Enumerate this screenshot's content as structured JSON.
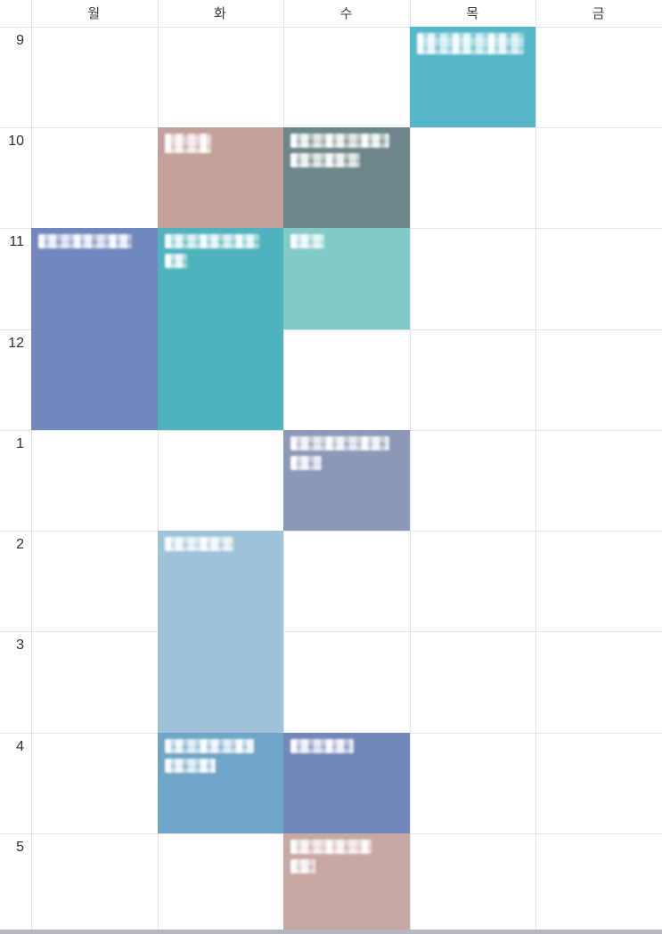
{
  "timetable": {
    "days": [
      {
        "label": "월"
      },
      {
        "label": "화"
      },
      {
        "label": "수"
      },
      {
        "label": "목"
      },
      {
        "label": "금"
      }
    ],
    "hours": [
      {
        "label": "9"
      },
      {
        "label": "10"
      },
      {
        "label": "11"
      },
      {
        "label": "12"
      },
      {
        "label": "1"
      },
      {
        "label": "2"
      },
      {
        "label": "3"
      },
      {
        "label": "4"
      },
      {
        "label": "5"
      }
    ],
    "events": [
      {
        "day": "목",
        "day_index": 3,
        "start": "9",
        "row": 0,
        "duration": 1,
        "color": "#55b7c7",
        "redacted_title": true,
        "lines": [
          [
            0.96,
            24
          ]
        ]
      },
      {
        "day": "화",
        "day_index": 1,
        "start": "10",
        "row": 1,
        "duration": 1,
        "color": "#c4a09a",
        "redacted_title": true,
        "lines": [
          [
            0.42,
            22
          ]
        ]
      },
      {
        "day": "수",
        "day_index": 2,
        "start": "10",
        "row": 1,
        "duration": 1,
        "color": "#6d8689",
        "redacted_title": true,
        "lines": [
          [
            0.88,
            16
          ],
          [
            0.62,
            16
          ]
        ]
      },
      {
        "day": "월",
        "day_index": 0,
        "start": "11",
        "row": 2,
        "duration": 2,
        "color": "#7187bd",
        "redacted_title": true,
        "lines": [
          [
            0.84,
            16
          ]
        ]
      },
      {
        "day": "화",
        "day_index": 1,
        "start": "11",
        "row": 2,
        "duration": 2,
        "color": "#4fb3bd",
        "redacted_title": true,
        "lines": [
          [
            0.85,
            16
          ],
          [
            0.2,
            16
          ]
        ]
      },
      {
        "day": "수",
        "day_index": 2,
        "start": "11",
        "row": 2,
        "duration": 1,
        "color": "#81cac7",
        "redacted_title": true,
        "lines": [
          [
            0.3,
            16
          ]
        ]
      },
      {
        "day": "수",
        "day_index": 2,
        "start": "1",
        "row": 4,
        "duration": 1,
        "color": "#8b98b6",
        "redacted_title": true,
        "lines": [
          [
            0.88,
            16
          ],
          [
            0.28,
            16
          ]
        ]
      },
      {
        "day": "화",
        "day_index": 1,
        "start": "2",
        "row": 5,
        "duration": 2,
        "color": "#9ec3d9",
        "redacted_title": true,
        "lines": [
          [
            0.62,
            16
          ]
        ]
      },
      {
        "day": "화",
        "day_index": 1,
        "start": "4",
        "row": 7,
        "duration": 1,
        "color": "#6fa5c6",
        "redacted_title": true,
        "lines": [
          [
            0.8,
            16
          ],
          [
            0.46,
            16
          ]
        ]
      },
      {
        "day": "수",
        "day_index": 2,
        "start": "4",
        "row": 7,
        "duration": 1,
        "color": "#7388ba",
        "redacted_title": true,
        "lines": [
          [
            0.56,
            16
          ]
        ]
      },
      {
        "day": "수",
        "day_index": 2,
        "start": "5",
        "row": 8,
        "duration": 1,
        "color": "#c8a8a4",
        "redacted_title": true,
        "lines": [
          [
            0.72,
            16
          ],
          [
            0.22,
            16
          ]
        ]
      }
    ],
    "colors": {
      "background": "#ffffff",
      "grid_line": "#e4e4e6",
      "day_label": "#3c3c3e",
      "hour_label": "#2e2e30",
      "bottom_bar": "#b4b7bd"
    }
  }
}
